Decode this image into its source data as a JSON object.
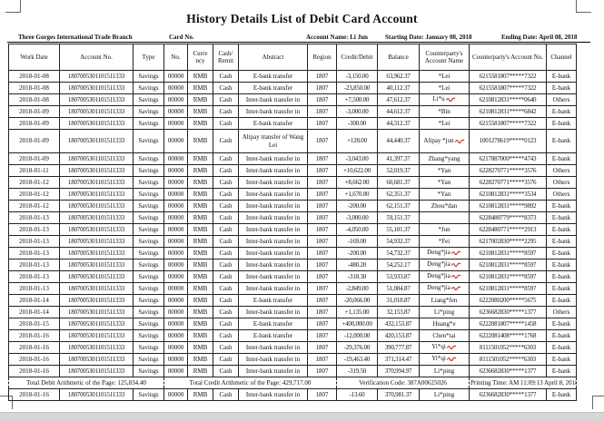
{
  "title": "History Details List of Debit Card Account",
  "meta": {
    "branch": "Three Gorges International Trade Branch",
    "card_no_label": "Card No.",
    "account_name": "Account Name: Li Jun",
    "starting_date": "Starting Date: January 08, 2018",
    "ending_date": "Ending Date: April 08, 2018"
  },
  "colors": {
    "red_mark": "#c42222",
    "border": "#222222",
    "bottom_bar": "#d6d6d6"
  },
  "table": {
    "headers": [
      "Work Date",
      "Account No.",
      "Type",
      "No.",
      "Curre ncy",
      "Cash/ Remit",
      "Abstract",
      "Region",
      "Credit/Debit",
      "Balance",
      "Counterparty's Account Name",
      "Counterparty's Account No.",
      "Channel"
    ],
    "rows": [
      {
        "cells": [
          "2018-01-08",
          "1807005301101511333",
          "Savings",
          "00000",
          "RMB",
          "Cash",
          "E-bank transfer",
          "1807",
          "-3,150.00",
          "63,962.37",
          "*Lei",
          "6215581807*****7322",
          "E-bank"
        ]
      },
      {
        "cells": [
          "2018-01-08",
          "1807005301101511333",
          "Savings",
          "00000",
          "RMB",
          "Cash",
          "E-bank transfer",
          "1807",
          "-23,850.00",
          "40,112.37",
          "*Lei",
          "6215581807*****7322",
          "E-bank"
        ]
      },
      {
        "cells": [
          "2018-01-08",
          "1807005301101511333",
          "Savings",
          "00000",
          "RMB",
          "Cash",
          "Inter-bank transfer in",
          "1807",
          "+7,500.00",
          "47,612.37",
          "Li*u",
          "6210812831*****0640",
          "Others"
        ],
        "red_mark": true
      },
      {
        "cells": [
          "2018-01-09",
          "1807005301101511333",
          "Savings",
          "00000",
          "RMB",
          "Cash",
          "Inter-bank transfer in",
          "1807",
          "-3,000.00",
          "44,612.37",
          "*Bin",
          "6210812831*****6842",
          "E-bank"
        ]
      },
      {
        "cells": [
          "2018-01-09",
          "1807005301101511333",
          "Savings",
          "00000",
          "RMB",
          "Cash",
          "E-bank transfer",
          "1807",
          "-300.00",
          "44,312.37",
          "*Lei",
          "6215581807*****7322",
          "E-bank"
        ]
      },
      {
        "cells": [
          "2018-01-09",
          "1807005301101511333",
          "Savings",
          "00000",
          "RMB",
          "Cash",
          "Alipay transfer of Wang Lei",
          "1807",
          "+128.00",
          "44,440.37",
          "Alipay *jun",
          "1001278619*****0123",
          "E-bank"
        ],
        "tall": true,
        "red_mark": true
      },
      {
        "cells": [
          "2018-01-09",
          "1807005301101511333",
          "Savings",
          "00000",
          "RMB",
          "Cash",
          "Inter-bank transfer in",
          "1807",
          "-3,043.00",
          "41,397.37",
          "Zhang*yang",
          "6217887000*****4743",
          "E-bank"
        ]
      },
      {
        "cells": [
          "2018-01-11",
          "1807005301101511333",
          "Savings",
          "00000",
          "RMB",
          "Cash",
          "Inter-bank transfer in",
          "1807",
          "+10,622.00",
          "52,019.37",
          "*Yan",
          "6228270771*****3576",
          "Others"
        ]
      },
      {
        "cells": [
          "2018-01-12",
          "1807005301101511333",
          "Savings",
          "00000",
          "RMB",
          "Cash",
          "Inter-bank transfer in",
          "1807",
          "+8,662.00",
          "60,681.37",
          "*Yan",
          "6228270771*****3576",
          "Others"
        ]
      },
      {
        "cells": [
          "2018-01-12",
          "1807005301101511333",
          "Savings",
          "00000",
          "RMB",
          "Cash",
          "Inter-bank transfer in",
          "1807",
          "+1,670.00",
          "62,351.37",
          "*Yan",
          "6210812831*****3534",
          "Others"
        ]
      },
      {
        "cells": [
          "2018-01-12",
          "1807005301101511333",
          "Savings",
          "00000",
          "RMB",
          "Cash",
          "Inter-bank transfer in",
          "1807",
          "-200.00",
          "62,151.37",
          "Zhou*dan",
          "6210812831*****9892",
          "E-bank"
        ]
      },
      {
        "cells": [
          "2018-01-13",
          "1807005301101511333",
          "Savings",
          "00000",
          "RMB",
          "Cash",
          "Inter-bank transfer in",
          "1807",
          "-3,000.00",
          "59,151.37",
          "",
          "6228480779*****8373",
          "E-bank"
        ]
      },
      {
        "cells": [
          "2018-01-13",
          "1807005301101511333",
          "Savings",
          "00000",
          "RMB",
          "Cash",
          "Inter-bank transfer in",
          "1807",
          "-4,050.00",
          "55,101.37",
          "*Jun",
          "6228480771*****2913",
          "E-bank"
        ]
      },
      {
        "cells": [
          "2018-01-13",
          "1807005301101511333",
          "Savings",
          "00000",
          "RMB",
          "Cash",
          "Inter-bank transfer in",
          "1807",
          "-169.00",
          "54,932.37",
          "*Fei",
          "6217002830*****2295",
          "E-bank"
        ]
      },
      {
        "cells": [
          "2018-01-13",
          "1807005301101511333",
          "Savings",
          "00000",
          "RMB",
          "Cash",
          "Inter-bank transfer in",
          "1807",
          "-200.00",
          "54,732.37",
          "Deng*jia",
          "6210812831*****8597",
          "E-bank"
        ],
        "red_mark": true
      },
      {
        "cells": [
          "2018-01-13",
          "1807005301101511333",
          "Savings",
          "00000",
          "RMB",
          "Cash",
          "Inter-bank transfer in",
          "1807",
          "-480.20",
          "54,252.17",
          "Deng*jia",
          "6210812831*****8597",
          "E-bank"
        ],
        "red_mark": true
      },
      {
        "cells": [
          "2018-01-13",
          "1807005301101511333",
          "Savings",
          "00000",
          "RMB",
          "Cash",
          "Inter-bank transfer in",
          "1807",
          "-318.30",
          "53,933.87",
          "Deng*jia",
          "6210812831*****8597",
          "E-bank"
        ],
        "red_mark": true
      },
      {
        "cells": [
          "2018-01-13",
          "1807005301101511333",
          "Savings",
          "00000",
          "RMB",
          "Cash",
          "Inter-bank transfer in",
          "1807",
          "-2,849.00",
          "51,084.87",
          "Deng*jia",
          "6210812831*****8597",
          "E-bank"
        ],
        "red_mark": true
      },
      {
        "cells": [
          "2018-01-14",
          "1807005301101511333",
          "Savings",
          "00000",
          "RMB",
          "Cash",
          "E-bank transfer",
          "1807",
          "-20,066.00",
          "31,018.87",
          "Liang*fen",
          "6222080200*****5675",
          "E-bank"
        ]
      },
      {
        "cells": [
          "2018-01-14",
          "1807005301101511333",
          "Savings",
          "00000",
          "RMB",
          "Cash",
          "Inter-bank transfer in",
          "1807",
          "+1,135.00",
          "32,153.87",
          "Li*ping",
          "6236682830*****1377",
          "Others"
        ]
      },
      {
        "cells": [
          "2018-01-15",
          "1807005301101511333",
          "Savings",
          "00000",
          "RMB",
          "Cash",
          "E-bank transfer",
          "1807",
          "+400,000.00",
          "432,153.87",
          "Huang*e",
          "6222081807*****1458",
          "E-bank"
        ]
      },
      {
        "cells": [
          "2018-01-16",
          "1807005301101511333",
          "Savings",
          "00000",
          "RMB",
          "Cash",
          "E-bank transfer",
          "1807",
          "-12,000.00",
          "420,153.87",
          "Chen*tai",
          "6222081408*****1768",
          "E-bank"
        ]
      },
      {
        "cells": [
          "2018-01-16",
          "1807005301101511333",
          "Savings",
          "00000",
          "RMB",
          "Cash",
          "Inter-bank transfer in",
          "1807",
          "-29,376.00",
          "390,777.87",
          "Yi*qi",
          "8111501052*****6303",
          "E-bank"
        ],
        "red_mark": true
      },
      {
        "cells": [
          "2018-01-16",
          "1807005301101511333",
          "Savings",
          "00000",
          "RMB",
          "Cash",
          "Inter-bank transfer in",
          "1807",
          "-19,463.40",
          "371,314.47",
          "Yi*qi",
          "8111501052*****6303",
          "E-bank"
        ],
        "red_mark": true
      },
      {
        "cells": [
          "2018-01-16",
          "1807005301101511333",
          "Savings",
          "00000",
          "RMB",
          "Cash",
          "Inter-bank transfer in",
          "1807",
          "-319.50",
          "370,994.97",
          "Li*ping",
          "6236682830*****1377",
          "E-bank"
        ]
      },
      {
        "totals": {
          "debit": "Total Debit Arithmetic of the Page: 125,834.40",
          "credit": "Total Credit Arithmetic of the Page: 429,717.00",
          "verification": "Verification Code: 387A00625026",
          "printing": "Printing Time: AM 11:09:13 April 8, 2018"
        }
      },
      {
        "cells": [
          "2018-01-16",
          "1807005301101511333",
          "Savings",
          "00000",
          "RMB",
          "Cash",
          "Inter-bank transfer in",
          "1807",
          "-13.60",
          "370,981.37",
          "Li*ping",
          "6236682830*****1377",
          "E-bank"
        ]
      }
    ]
  }
}
